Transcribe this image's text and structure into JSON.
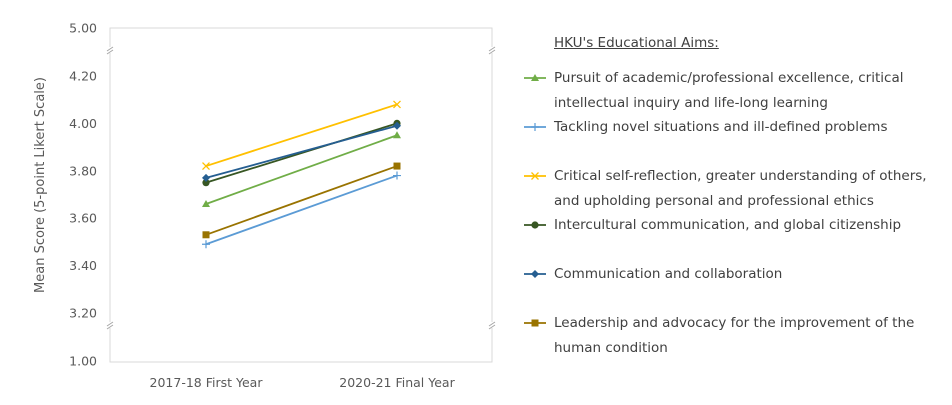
{
  "chart_data": {
    "type": "line",
    "categories": [
      "2017-18 First Year",
      "2020-21 Final Year"
    ],
    "ylabel": "Mean Score (5-point Likert Scale)",
    "y_tick_labels": [
      "1.00",
      "3.20",
      "3.40",
      "3.60",
      "3.80",
      "4.00",
      "4.20",
      "5.00"
    ],
    "axis_breaks": true,
    "grid": false,
    "legend_position": "right",
    "legend_title": "HKU's Educational Aims:",
    "series": [
      {
        "name": "Pursuit of academic/professional excellence, critical\nintellectual inquiry and life-long learning",
        "values": [
          3.66,
          3.95
        ],
        "color": "#70ad47",
        "marker": "triangle"
      },
      {
        "name": "Tackling novel situations and ill-defined problems",
        "values": [
          3.49,
          3.78
        ],
        "color": "#5b9bd5",
        "marker": "plus"
      },
      {
        "name": "Critical self-reflection, greater understanding of others,\nand upholding personal and professional ethics",
        "values": [
          3.82,
          4.08
        ],
        "color": "#ffc000",
        "marker": "x"
      },
      {
        "name": "Intercultural communication, and global citizenship",
        "values": [
          3.75,
          4.0
        ],
        "color": "#375623",
        "marker": "circle"
      },
      {
        "name": "Communication and collaboration",
        "values": [
          3.77,
          3.99
        ],
        "color": "#255e91",
        "marker": "diamond"
      },
      {
        "name": "Leadership and advocacy for the improvement of the\nhuman condition",
        "values": [
          3.53,
          3.82
        ],
        "color": "#997300",
        "marker": "square"
      }
    ]
  }
}
